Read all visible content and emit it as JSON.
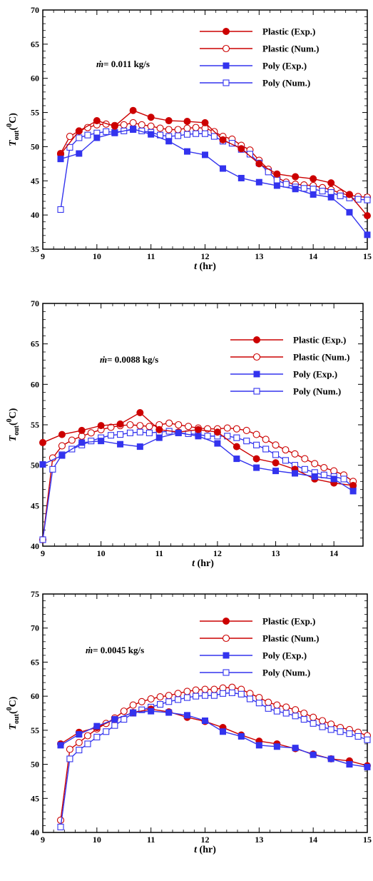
{
  "chart_data": [
    {
      "type": "line",
      "panel": "top",
      "annotation": {
        "prefix": "ṁ",
        "text": "= 0.011 kg/s"
      },
      "xlabel": {
        "main": "t",
        "unit": "(hr)"
      },
      "ylabel": {
        "main": "T",
        "sub": "out",
        "paren_open": "(",
        "sup": "0",
        "unit": "C)"
      },
      "xlim": [
        9,
        15
      ],
      "ylim": [
        35,
        70
      ],
      "xticks": [
        9,
        10,
        11,
        12,
        13,
        14,
        15
      ],
      "yticks": [
        35,
        40,
        45,
        50,
        55,
        60,
        65,
        70
      ],
      "legend_position": "top-right",
      "series": [
        {
          "name": "Plastic (Exp.)",
          "color": "#cc0000",
          "marker": "filled-circle",
          "x": [
            9.33,
            9.67,
            10.0,
            10.33,
            10.67,
            11.0,
            11.33,
            11.67,
            12.0,
            12.33,
            12.67,
            13.0,
            13.33,
            13.67,
            14.0,
            14.33,
            14.67,
            15.0
          ],
          "y": [
            48.9,
            52.3,
            53.8,
            53.0,
            55.3,
            54.3,
            53.8,
            53.7,
            53.5,
            51.0,
            49.7,
            47.5,
            46.0,
            45.6,
            45.3,
            44.7,
            43.0,
            39.9
          ]
        },
        {
          "name": "Plastic (Num.)",
          "color": "#cc0000",
          "marker": "open-circle",
          "x": [
            9.33,
            9.5,
            9.67,
            9.83,
            10.0,
            10.17,
            10.33,
            10.5,
            10.67,
            10.83,
            11.0,
            11.17,
            11.33,
            11.5,
            11.67,
            11.83,
            12.0,
            12.17,
            12.33,
            12.5,
            12.67,
            12.83,
            13.0,
            13.17,
            13.33,
            13.5,
            13.67,
            13.83,
            14.0,
            14.17,
            14.33,
            14.5,
            14.67,
            14.83,
            15.0
          ],
          "y": [
            49.0,
            51.5,
            52.3,
            52.8,
            53.2,
            53.3,
            53.1,
            53.2,
            53.5,
            53.2,
            53.0,
            52.7,
            52.5,
            52.5,
            52.7,
            52.8,
            52.7,
            52.2,
            51.5,
            51.1,
            50.2,
            49.5,
            48.0,
            46.7,
            45.5,
            44.8,
            44.5,
            44.4,
            44.3,
            44.0,
            43.7,
            43.2,
            42.9,
            42.7,
            42.6
          ]
        },
        {
          "name": "Poly (Exp.)",
          "color": "#3333ee",
          "marker": "filled-square",
          "x": [
            9.33,
            9.67,
            10.0,
            10.33,
            10.67,
            11.0,
            11.33,
            11.67,
            12.0,
            12.33,
            12.67,
            13.0,
            13.33,
            13.67,
            14.0,
            14.33,
            14.67,
            15.0
          ],
          "y": [
            48.2,
            49.0,
            51.3,
            52.0,
            52.6,
            51.8,
            50.8,
            49.3,
            48.8,
            46.8,
            45.4,
            44.8,
            44.3,
            43.8,
            43.0,
            42.6,
            40.4,
            37.1
          ]
        },
        {
          "name": "Poly (Num.)",
          "color": "#3333ee",
          "marker": "open-square",
          "x": [
            9.33,
            9.5,
            9.67,
            9.83,
            10.0,
            10.17,
            10.33,
            10.5,
            10.67,
            10.83,
            11.0,
            11.17,
            11.33,
            11.5,
            11.67,
            11.83,
            12.0,
            12.17,
            12.33,
            12.5,
            12.67,
            12.83,
            13.0,
            13.17,
            13.33,
            13.5,
            13.67,
            13.83,
            14.0,
            14.17,
            14.33,
            14.5,
            14.67,
            14.83,
            15.0
          ],
          "y": [
            40.8,
            49.9,
            51.3,
            51.7,
            52.0,
            52.2,
            52.1,
            52.3,
            52.5,
            52.3,
            52.1,
            51.7,
            51.5,
            51.6,
            51.8,
            51.9,
            51.9,
            51.5,
            50.8,
            50.5,
            49.6,
            48.9,
            47.6,
            46.3,
            45.1,
            44.5,
            44.1,
            43.9,
            43.8,
            43.5,
            43.3,
            42.8,
            42.5,
            42.3,
            42.2
          ]
        }
      ]
    },
    {
      "type": "line",
      "panel": "middle",
      "annotation": {
        "prefix": "ṁ",
        "text": "= 0.0088 kg/s"
      },
      "xlabel": {
        "main": "t",
        "unit": "(hr)"
      },
      "ylabel": {
        "main": "T",
        "sub": "out",
        "paren_open": "(",
        "sup": "0",
        "unit": "C)"
      },
      "xlim": [
        9,
        14.5
      ],
      "ylim": [
        40,
        70
      ],
      "xticks": [
        9,
        10,
        11,
        12,
        13,
        14
      ],
      "yticks": [
        40,
        45,
        50,
        55,
        60,
        65,
        70
      ],
      "legend_position": "top-right",
      "series": [
        {
          "name": "Plastic (Exp.)",
          "color": "#cc0000",
          "marker": "filled-circle",
          "x": [
            9.0,
            9.33,
            9.67,
            10.0,
            10.33,
            10.67,
            11.0,
            11.33,
            11.67,
            12.0,
            12.33,
            12.67,
            13.0,
            13.33,
            13.67,
            14.0,
            14.33
          ],
          "y": [
            52.8,
            53.8,
            54.3,
            54.9,
            55.1,
            56.5,
            54.4,
            54.1,
            54.4,
            54.1,
            52.3,
            50.8,
            50.3,
            49.5,
            48.3,
            47.8,
            47.5
          ]
        },
        {
          "name": "Plastic (Num.)",
          "color": "#cc0000",
          "marker": "open-circle",
          "x": [
            9.0,
            9.17,
            9.33,
            9.5,
            9.67,
            9.83,
            10.0,
            10.17,
            10.33,
            10.5,
            10.67,
            10.83,
            11.0,
            11.17,
            11.33,
            11.5,
            11.67,
            11.83,
            12.0,
            12.17,
            12.33,
            12.5,
            12.67,
            12.83,
            13.0,
            13.17,
            13.33,
            13.5,
            13.67,
            13.83,
            14.0,
            14.17,
            14.33
          ],
          "y": [
            40.8,
            50.9,
            52.4,
            53.1,
            53.6,
            54.0,
            54.4,
            54.7,
            54.9,
            55.0,
            54.9,
            54.8,
            55.0,
            55.2,
            55.0,
            54.8,
            54.6,
            54.5,
            54.5,
            54.6,
            54.5,
            54.3,
            53.8,
            53.2,
            52.5,
            51.9,
            51.4,
            50.8,
            50.2,
            49.7,
            49.3,
            48.8,
            48.0
          ]
        },
        {
          "name": "Poly (Exp.)",
          "color": "#3333ee",
          "marker": "filled-square",
          "x": [
            9.0,
            9.33,
            9.67,
            10.0,
            10.33,
            10.67,
            11.0,
            11.33,
            11.67,
            12.0,
            12.33,
            12.67,
            13.0,
            13.33,
            13.67,
            14.0,
            14.33
          ],
          "y": [
            50.1,
            51.2,
            52.8,
            53.0,
            52.6,
            52.3,
            53.4,
            54.0,
            53.6,
            52.7,
            50.8,
            49.7,
            49.3,
            49.0,
            48.6,
            48.3,
            46.8
          ]
        },
        {
          "name": "Poly (Num.)",
          "color": "#3333ee",
          "marker": "open-square",
          "x": [
            9.0,
            9.17,
            9.33,
            9.5,
            9.67,
            9.83,
            10.0,
            10.17,
            10.33,
            10.5,
            10.67,
            10.83,
            11.0,
            11.17,
            11.33,
            11.5,
            11.67,
            11.83,
            12.0,
            12.17,
            12.33,
            12.5,
            12.67,
            12.83,
            13.0,
            13.17,
            13.33,
            13.5,
            13.67,
            13.83,
            14.0,
            14.17,
            14.33
          ],
          "y": [
            40.8,
            49.5,
            51.3,
            52.0,
            52.5,
            53.0,
            53.4,
            53.7,
            53.8,
            54.0,
            54.1,
            54.0,
            54.1,
            54.2,
            54.0,
            53.9,
            53.8,
            53.6,
            53.6,
            53.6,
            53.4,
            53.0,
            52.5,
            52.0,
            51.3,
            50.6,
            50.0,
            49.5,
            49.1,
            48.8,
            48.6,
            48.3,
            47.3
          ]
        }
      ]
    },
    {
      "type": "line",
      "panel": "bottom",
      "annotation": {
        "prefix": "ṁ",
        "text": "= 0.0045 kg/s"
      },
      "xlabel": {
        "main": "t",
        "unit": "(hr)"
      },
      "ylabel": {
        "main": "T",
        "sub": "out",
        "paren_open": "(",
        "sup": "0",
        "unit": "C)"
      },
      "xlim": [
        9,
        15
      ],
      "ylim": [
        40,
        75
      ],
      "xticks": [
        9,
        10,
        11,
        12,
        13,
        14,
        15
      ],
      "yticks": [
        40,
        45,
        50,
        55,
        60,
        65,
        70,
        75
      ],
      "legend_position": "top-right",
      "series": [
        {
          "name": "Plastic (Exp.)",
          "color": "#cc0000",
          "marker": "filled-circle",
          "x": [
            9.33,
            9.67,
            10.0,
            10.33,
            10.67,
            11.0,
            11.33,
            11.67,
            12.0,
            12.33,
            12.67,
            13.0,
            13.33,
            13.67,
            14.0,
            14.33,
            14.67,
            15.0
          ],
          "y": [
            53.0,
            54.7,
            55.4,
            56.6,
            57.6,
            58.1,
            57.7,
            56.9,
            56.3,
            55.4,
            54.3,
            53.4,
            53.0,
            52.3,
            51.5,
            50.8,
            50.5,
            49.8
          ]
        },
        {
          "name": "Plastic (Num.)",
          "color": "#cc0000",
          "marker": "open-circle",
          "x": [
            9.33,
            9.5,
            9.67,
            9.83,
            10.0,
            10.17,
            10.33,
            10.5,
            10.67,
            10.83,
            11.0,
            11.17,
            11.33,
            11.5,
            11.67,
            11.83,
            12.0,
            12.17,
            12.33,
            12.5,
            12.67,
            12.83,
            13.0,
            13.17,
            13.33,
            13.5,
            13.67,
            13.83,
            14.0,
            14.17,
            14.33,
            14.5,
            14.67,
            14.83,
            15.0
          ],
          "y": [
            41.8,
            52.2,
            53.2,
            54.2,
            55.2,
            56.0,
            56.8,
            57.8,
            58.7,
            59.2,
            59.6,
            59.9,
            60.1,
            60.4,
            60.7,
            60.9,
            61.0,
            61.0,
            61.2,
            61.3,
            61.0,
            60.4,
            59.8,
            59.1,
            58.7,
            58.4,
            58.0,
            57.5,
            56.9,
            56.4,
            55.9,
            55.4,
            55.1,
            54.7,
            54.2
          ]
        },
        {
          "name": "Poly (Exp.)",
          "color": "#3333ee",
          "marker": "filled-square",
          "x": [
            9.33,
            9.67,
            10.0,
            10.33,
            10.67,
            11.0,
            11.33,
            11.67,
            12.0,
            12.33,
            12.67,
            13.0,
            13.33,
            13.67,
            14.0,
            14.33,
            14.67,
            15.0
          ],
          "y": [
            52.8,
            54.4,
            55.6,
            56.6,
            57.6,
            57.8,
            57.6,
            57.2,
            56.4,
            54.8,
            54.1,
            52.8,
            52.6,
            52.4,
            51.4,
            50.8,
            50.0,
            49.6
          ]
        },
        {
          "name": "Poly (Num.)",
          "color": "#3333ee",
          "marker": "open-square",
          "x": [
            9.33,
            9.5,
            9.67,
            9.83,
            10.0,
            10.17,
            10.33,
            10.5,
            10.67,
            10.83,
            11.0,
            11.17,
            11.33,
            11.5,
            11.67,
            11.83,
            12.0,
            12.17,
            12.33,
            12.5,
            12.67,
            12.83,
            13.0,
            13.17,
            13.33,
            13.5,
            13.67,
            13.83,
            14.0,
            14.17,
            14.33,
            14.5,
            14.67,
            14.83,
            15.0
          ],
          "y": [
            40.8,
            50.8,
            52.1,
            53.0,
            54.0,
            54.8,
            55.7,
            56.6,
            57.5,
            58.0,
            58.4,
            58.8,
            59.2,
            59.5,
            59.8,
            60.0,
            60.1,
            60.1,
            60.4,
            60.5,
            60.3,
            59.6,
            59.0,
            58.2,
            57.8,
            57.5,
            57.1,
            56.6,
            56.0,
            55.5,
            55.1,
            54.8,
            54.5,
            54.1,
            53.6
          ]
        }
      ]
    }
  ]
}
